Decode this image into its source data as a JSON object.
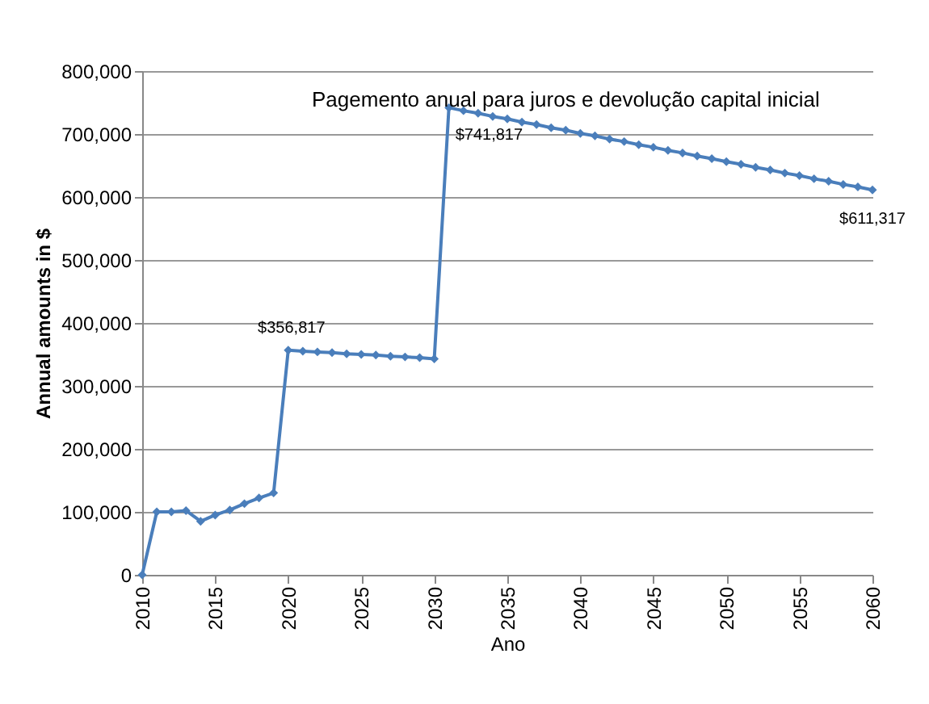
{
  "chart_data": {
    "type": "line",
    "title": "Pagemento anual para juros e devolução capital inicial",
    "xlabel": "Ano",
    "ylabel": "Annual amounts in $",
    "x": [
      2010,
      2011,
      2012,
      2013,
      2014,
      2015,
      2016,
      2017,
      2018,
      2019,
      2020,
      2021,
      2022,
      2023,
      2024,
      2025,
      2026,
      2027,
      2028,
      2029,
      2030,
      2031,
      2032,
      2033,
      2034,
      2035,
      2036,
      2037,
      2038,
      2039,
      2040,
      2041,
      2042,
      2043,
      2044,
      2045,
      2046,
      2047,
      2048,
      2049,
      2050,
      2051,
      2052,
      2053,
      2054,
      2055,
      2056,
      2057,
      2058,
      2059,
      2060
    ],
    "series": [
      {
        "color": "#4a7ebb",
        "values": [
          0,
          100000,
          100000,
          102000,
          85000,
          95000,
          103000,
          113000,
          122000,
          130000,
          356817,
          355000,
          354000,
          353000,
          351000,
          350000,
          349000,
          347000,
          346000,
          345000,
          343000,
          741817,
          737000,
          733000,
          728000,
          724000,
          719000,
          715000,
          710000,
          706000,
          701000,
          697000,
          692000,
          688000,
          683000,
          679000,
          674000,
          670000,
          665000,
          661000,
          656000,
          652000,
          647000,
          643000,
          638000,
          634000,
          629000,
          625000,
          620000,
          616000,
          611317
        ]
      }
    ],
    "annotations": [
      {
        "text": "$356,817",
        "x": 2020,
        "y": 356817
      },
      {
        "text": "$741,817",
        "x": 2031,
        "y": 741817
      },
      {
        "text": "$611,317",
        "x": 2060,
        "y": 611317
      }
    ],
    "xlim": [
      2010,
      2060
    ],
    "xticks": [
      2010,
      2015,
      2020,
      2025,
      2030,
      2035,
      2040,
      2045,
      2050,
      2055,
      2060
    ],
    "ylim": [
      0,
      800000
    ],
    "yticks": [
      0,
      {
        "value": 100000,
        "label": "100,000"
      },
      {
        "value": 200000,
        "label": "200,000"
      },
      {
        "value": 300000,
        "label": "300,000"
      },
      {
        "value": 400000,
        "label": "400,000"
      },
      {
        "value": 500000,
        "label": "500,000"
      },
      {
        "value": 600000,
        "label": "600,000"
      },
      {
        "value": 700000,
        "label": "700,000"
      },
      {
        "value": 800000,
        "label": "800,000"
      }
    ],
    "grid": "y",
    "legend": false,
    "marker": "diamond",
    "line_style": "solid"
  }
}
